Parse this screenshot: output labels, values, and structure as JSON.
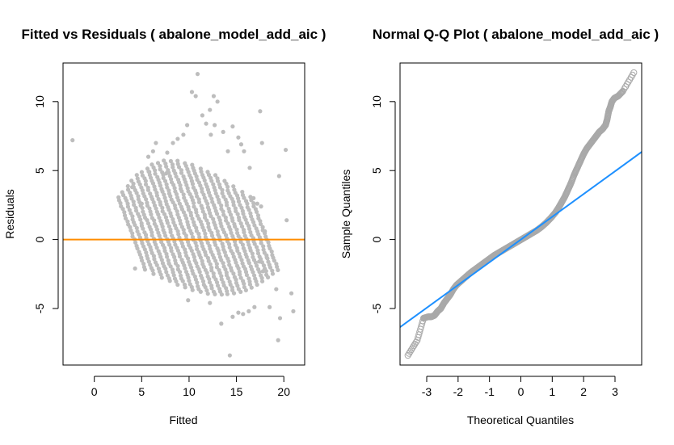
{
  "chart_data": [
    {
      "type": "scatter",
      "title": "Fitted vs Residuals ( abalone_model_add_aic )",
      "xlabel": "Fitted",
      "ylabel": "Residuals",
      "xlim": [
        -3.3,
        22.2
      ],
      "ylim": [
        -9.1,
        12.8
      ],
      "xticks": [
        0,
        5,
        10,
        15,
        20
      ],
      "yticks": [
        -5,
        0,
        5,
        10
      ],
      "point_color": "#bdbdbd",
      "reference_line": {
        "type": "horizontal",
        "y": 0,
        "color": "#ff8c00"
      },
      "bands": {
        "x_start": 4.2,
        "x_spacing": 0.7,
        "slope": -1.0,
        "count": 21
      },
      "points": [
        [
          -2.3,
          7.2
        ],
        [
          4.0,
          3.8
        ],
        [
          4.3,
          -2.1
        ],
        [
          5.0,
          2.6
        ],
        [
          5.7,
          6.0
        ],
        [
          6.2,
          6.4
        ],
        [
          6.5,
          7.0
        ],
        [
          5.8,
          4.9
        ],
        [
          7.6,
          4.8
        ],
        [
          7.7,
          6.3
        ],
        [
          8.3,
          7.0
        ],
        [
          8.8,
          7.3
        ],
        [
          9.4,
          7.6
        ],
        [
          9.8,
          8.3
        ],
        [
          10.3,
          10.7
        ],
        [
          10.7,
          10.4
        ],
        [
          10.9,
          12.0
        ],
        [
          11.4,
          9.0
        ],
        [
          11.8,
          8.4
        ],
        [
          12.2,
          9.4
        ],
        [
          12.6,
          10.4
        ],
        [
          12.7,
          8.3
        ],
        [
          12.3,
          7.6
        ],
        [
          13.0,
          10.0
        ],
        [
          13.6,
          7.8
        ],
        [
          14.1,
          6.4
        ],
        [
          14.6,
          8.2
        ],
        [
          15.2,
          7.4
        ],
        [
          15.5,
          6.9
        ],
        [
          15.8,
          6.4
        ],
        [
          16.4,
          5.2
        ],
        [
          16.8,
          3.0
        ],
        [
          17.2,
          2.6
        ],
        [
          17.5,
          9.3
        ],
        [
          17.7,
          7.0
        ],
        [
          17.6,
          2.4
        ],
        [
          18.0,
          0.6
        ],
        [
          17.4,
          -1.6
        ],
        [
          17.8,
          -2.3
        ],
        [
          18.2,
          -1.3
        ],
        [
          18.5,
          -4.9
        ],
        [
          19.2,
          -3.6
        ],
        [
          19.5,
          4.6
        ],
        [
          20.2,
          6.5
        ],
        [
          20.3,
          1.4
        ],
        [
          19.6,
          -5.7
        ],
        [
          19.4,
          -7.3
        ],
        [
          20.8,
          -3.9
        ],
        [
          21.0,
          -5.2
        ],
        [
          14.3,
          -8.4
        ],
        [
          13.4,
          -6.1
        ],
        [
          14.6,
          -5.6
        ],
        [
          15.2,
          -5.3
        ],
        [
          15.7,
          -5.4
        ],
        [
          16.3,
          -5.2
        ],
        [
          16.9,
          -4.9
        ],
        [
          12.2,
          -4.6
        ],
        [
          9.9,
          -4.4
        ]
      ]
    },
    {
      "type": "scatter",
      "title": "Normal Q-Q Plot ( abalone_model_add_aic )",
      "xlabel": "Theoretical Quantiles",
      "ylabel": "Sample Quantiles",
      "xlim": [
        -3.85,
        3.85
      ],
      "ylim": [
        -9.1,
        12.8
      ],
      "xticks": [
        -3,
        -2,
        -1,
        0,
        1,
        2,
        3
      ],
      "yticks": [
        -5,
        0,
        5,
        10
      ],
      "point_color": "#a9a9a9",
      "reference_line": {
        "type": "abline",
        "intercept": 0,
        "slope": 1.65,
        "color": "#1e90ff"
      },
      "points": [
        [
          -3.6,
          -8.4
        ],
        [
          -3.3,
          -7.3
        ],
        [
          -3.1,
          -5.7
        ],
        [
          -2.95,
          -5.6
        ],
        [
          -2.85,
          -5.6
        ],
        [
          -2.75,
          -5.5
        ],
        [
          -2.65,
          -5.2
        ],
        [
          -2.55,
          -5.0
        ],
        [
          -2.45,
          -4.6
        ],
        [
          -2.35,
          -4.3
        ],
        [
          -2.25,
          -4.0
        ],
        [
          -2.15,
          -3.6
        ],
        [
          -2.05,
          -3.3
        ],
        [
          -1.9,
          -3.0
        ],
        [
          -1.75,
          -2.7
        ],
        [
          -1.6,
          -2.4
        ],
        [
          -1.45,
          -2.15
        ],
        [
          -1.3,
          -1.9
        ],
        [
          -1.15,
          -1.65
        ],
        [
          -1.0,
          -1.4
        ],
        [
          -0.85,
          -1.15
        ],
        [
          -0.7,
          -0.95
        ],
        [
          -0.55,
          -0.75
        ],
        [
          -0.4,
          -0.55
        ],
        [
          -0.25,
          -0.35
        ],
        [
          -0.1,
          -0.15
        ],
        [
          0.05,
          0.05
        ],
        [
          0.2,
          0.25
        ],
        [
          0.35,
          0.45
        ],
        [
          0.5,
          0.65
        ],
        [
          0.65,
          0.9
        ],
        [
          0.8,
          1.2
        ],
        [
          0.95,
          1.55
        ],
        [
          1.1,
          1.95
        ],
        [
          1.2,
          2.3
        ],
        [
          1.3,
          2.7
        ],
        [
          1.4,
          3.1
        ],
        [
          1.5,
          3.6
        ],
        [
          1.6,
          4.1
        ],
        [
          1.7,
          4.7
        ],
        [
          1.8,
          5.2
        ],
        [
          1.9,
          5.7
        ],
        [
          2.0,
          6.2
        ],
        [
          2.1,
          6.6
        ],
        [
          2.2,
          6.9
        ],
        [
          2.3,
          7.2
        ],
        [
          2.4,
          7.5
        ],
        [
          2.5,
          7.8
        ],
        [
          2.6,
          8.0
        ],
        [
          2.7,
          8.3
        ],
        [
          2.75,
          8.7
        ],
        [
          2.8,
          9.3
        ],
        [
          2.85,
          9.6
        ],
        [
          2.9,
          10.0
        ],
        [
          2.98,
          10.25
        ],
        [
          3.1,
          10.4
        ],
        [
          3.25,
          10.75
        ],
        [
          3.6,
          12.1
        ]
      ]
    }
  ]
}
